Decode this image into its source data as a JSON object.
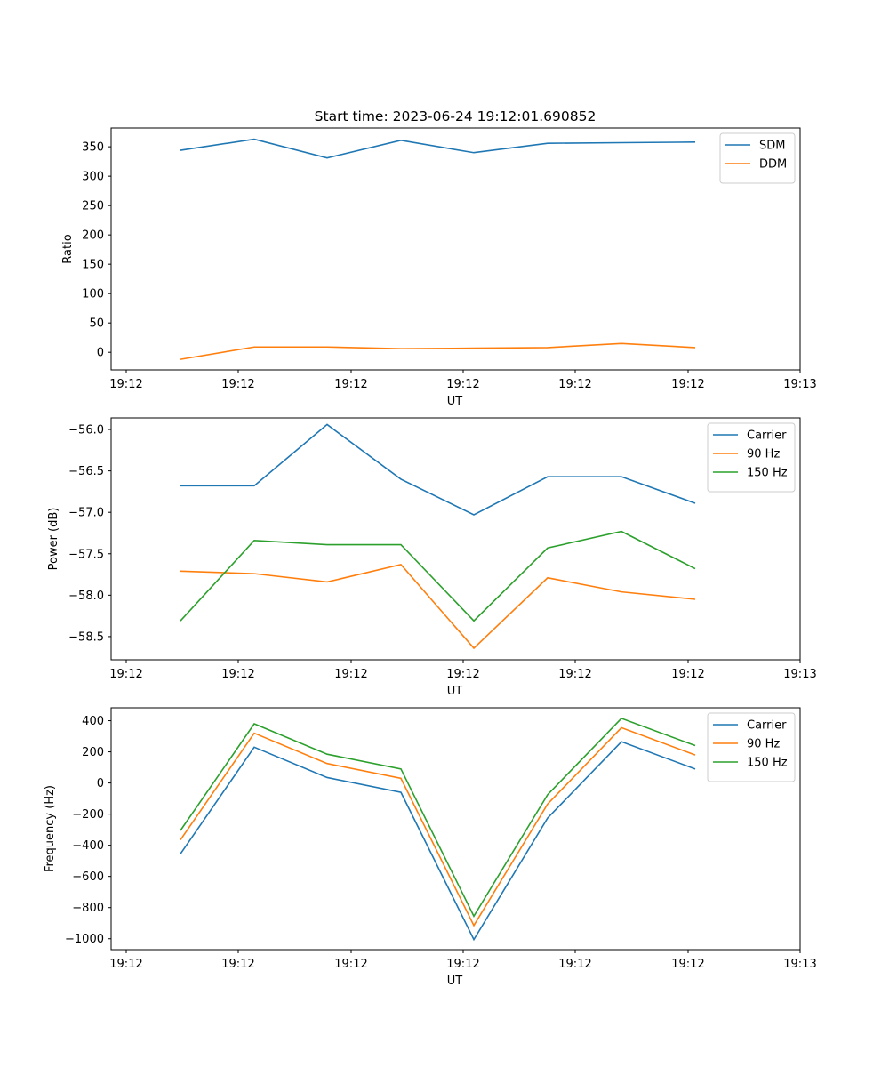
{
  "figure": {
    "title": "Start time: 2023-06-24 19:12:01.690852"
  },
  "chart_data": [
    {
      "type": "line",
      "xlabel": "UT",
      "ylabel": "Ratio",
      "x_tick_labels": [
        "19:12",
        "19:12",
        "19:12",
        "19:12",
        "19:12",
        "19:12",
        "19:12"
      ],
      "x_last_tick_label": "19:13",
      "y_ticks": [
        0,
        50,
        100,
        150,
        200,
        250,
        300,
        350
      ],
      "y_tick_labels": [
        "0",
        "50",
        "100",
        "150",
        "200",
        "250",
        "300",
        "350"
      ],
      "ylim": [
        -30,
        382
      ],
      "legend_position": "top-right",
      "grid": false,
      "x_points": [
        1,
        2,
        3,
        4,
        5,
        6,
        7,
        8
      ],
      "series": [
        {
          "name": "SDM",
          "color": "#1f77b4",
          "values": [
            344,
            363,
            331,
            361,
            340,
            356,
            357,
            358
          ]
        },
        {
          "name": "DDM",
          "color": "#ff7f0e",
          "values": [
            -12,
            9,
            9,
            6,
            7,
            8,
            15,
            8
          ]
        }
      ]
    },
    {
      "type": "line",
      "xlabel": "UT",
      "ylabel": "Power (dB)",
      "x_tick_labels": [
        "19:12",
        "19:12",
        "19:12",
        "19:12",
        "19:12",
        "19:12",
        "19:12"
      ],
      "x_last_tick_label": "19:13",
      "y_ticks": [
        -58.5,
        -58.0,
        -57.5,
        -57.0,
        -56.5,
        -56.0
      ],
      "y_tick_labels": [
        "−58.5",
        "−58.0",
        "−57.5",
        "−57.0",
        "−56.5",
        "−56.0"
      ],
      "ylim": [
        -58.78,
        -55.86
      ],
      "legend_position": "top-right",
      "grid": false,
      "x_points": [
        1,
        2,
        3,
        4,
        5,
        6,
        7,
        8
      ],
      "series": [
        {
          "name": "Carrier",
          "color": "#1f77b4",
          "values": [
            -56.68,
            -56.68,
            -55.94,
            -56.6,
            -57.03,
            -56.57,
            -56.57,
            -56.89
          ]
        },
        {
          "name": "90 Hz",
          "color": "#ff7f0e",
          "values": [
            -57.71,
            -57.74,
            -57.84,
            -57.63,
            -58.64,
            -57.79,
            -57.96,
            -58.05
          ]
        },
        {
          "name": "150 Hz",
          "color": "#2ca02c",
          "values": [
            -58.31,
            -57.34,
            -57.39,
            -57.39,
            -58.31,
            -57.43,
            -57.23,
            -57.68
          ]
        }
      ]
    },
    {
      "type": "line",
      "xlabel": "UT",
      "ylabel": "Frequency (Hz)",
      "x_tick_labels": [
        "19:12",
        "19:12",
        "19:12",
        "19:12",
        "19:12",
        "19:12",
        "19:12"
      ],
      "x_last_tick_label": "19:13",
      "y_ticks": [
        -1000,
        -800,
        -600,
        -400,
        -200,
        0,
        200,
        400
      ],
      "y_tick_labels": [
        "−1000",
        "−800",
        "−600",
        "−400",
        "−200",
        "0",
        "200",
        "400"
      ],
      "ylim": [
        -1070,
        483
      ],
      "legend_position": "top-right",
      "grid": false,
      "x_points": [
        1,
        2,
        3,
        4,
        5,
        6,
        7,
        8
      ],
      "series": [
        {
          "name": "Carrier",
          "color": "#1f77b4",
          "values": [
            -455,
            230,
            35,
            -60,
            -1005,
            -225,
            265,
            90
          ]
        },
        {
          "name": "90 Hz",
          "color": "#ff7f0e",
          "values": [
            -365,
            320,
            125,
            30,
            -915,
            -135,
            355,
            180
          ]
        },
        {
          "name": "150 Hz",
          "color": "#2ca02c",
          "values": [
            -305,
            380,
            185,
            90,
            -855,
            -75,
            415,
            240
          ]
        }
      ]
    }
  ]
}
